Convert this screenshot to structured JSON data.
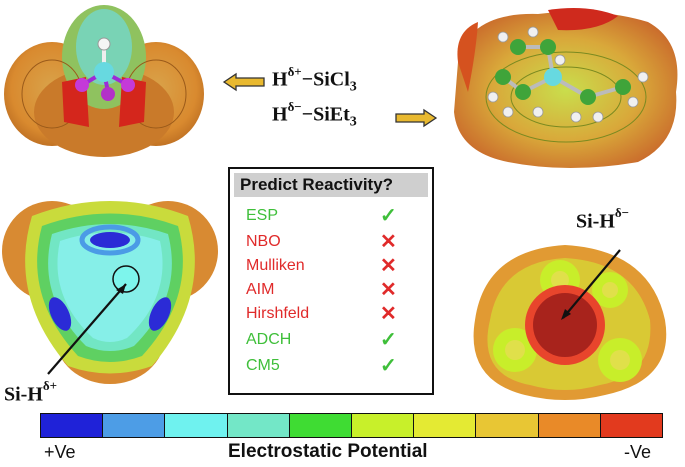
{
  "formulas": {
    "top_base": "H",
    "top_sup": "δ+",
    "top_rest": "−SiCl",
    "top_sub": "3",
    "bottom_base": "H",
    "bottom_sup": "δ−",
    "bottom_rest": "−SiEt",
    "bottom_sub": "3"
  },
  "predict_box": {
    "title": "Predict Reactivity?",
    "rows": [
      {
        "method": "ESP",
        "result": "✓",
        "status": "good"
      },
      {
        "method": "NBO",
        "result": "✕",
        "status": "bad"
      },
      {
        "method": "Mulliken",
        "result": "✕",
        "status": "bad"
      },
      {
        "method": "AIM",
        "result": "✕",
        "status": "bad"
      },
      {
        "method": "Hirshfeld",
        "result": "✕",
        "status": "bad"
      },
      {
        "method": "ADCH",
        "result": "✓",
        "status": "good"
      },
      {
        "method": "CM5",
        "result": "✓",
        "status": "good"
      }
    ]
  },
  "labels": {
    "left_base": "Si-H",
    "left_sup": "δ+",
    "right_base": "Si-H",
    "right_sup": "δ−"
  },
  "scale": {
    "title": "Electrostatic Potential",
    "left": "+Ve",
    "right": "-Ve",
    "colors": [
      "#1f22d8",
      "#4d9de6",
      "#6ff2ef",
      "#73e7c7",
      "#3fdc33",
      "#c8f02a",
      "#e4ea33",
      "#e8c634",
      "#e98a28",
      "#e23a1e"
    ]
  },
  "colors": {
    "good": "#3fbf3a",
    "bad": "#e02a2a",
    "arrow_fill": "#e9b92f"
  }
}
